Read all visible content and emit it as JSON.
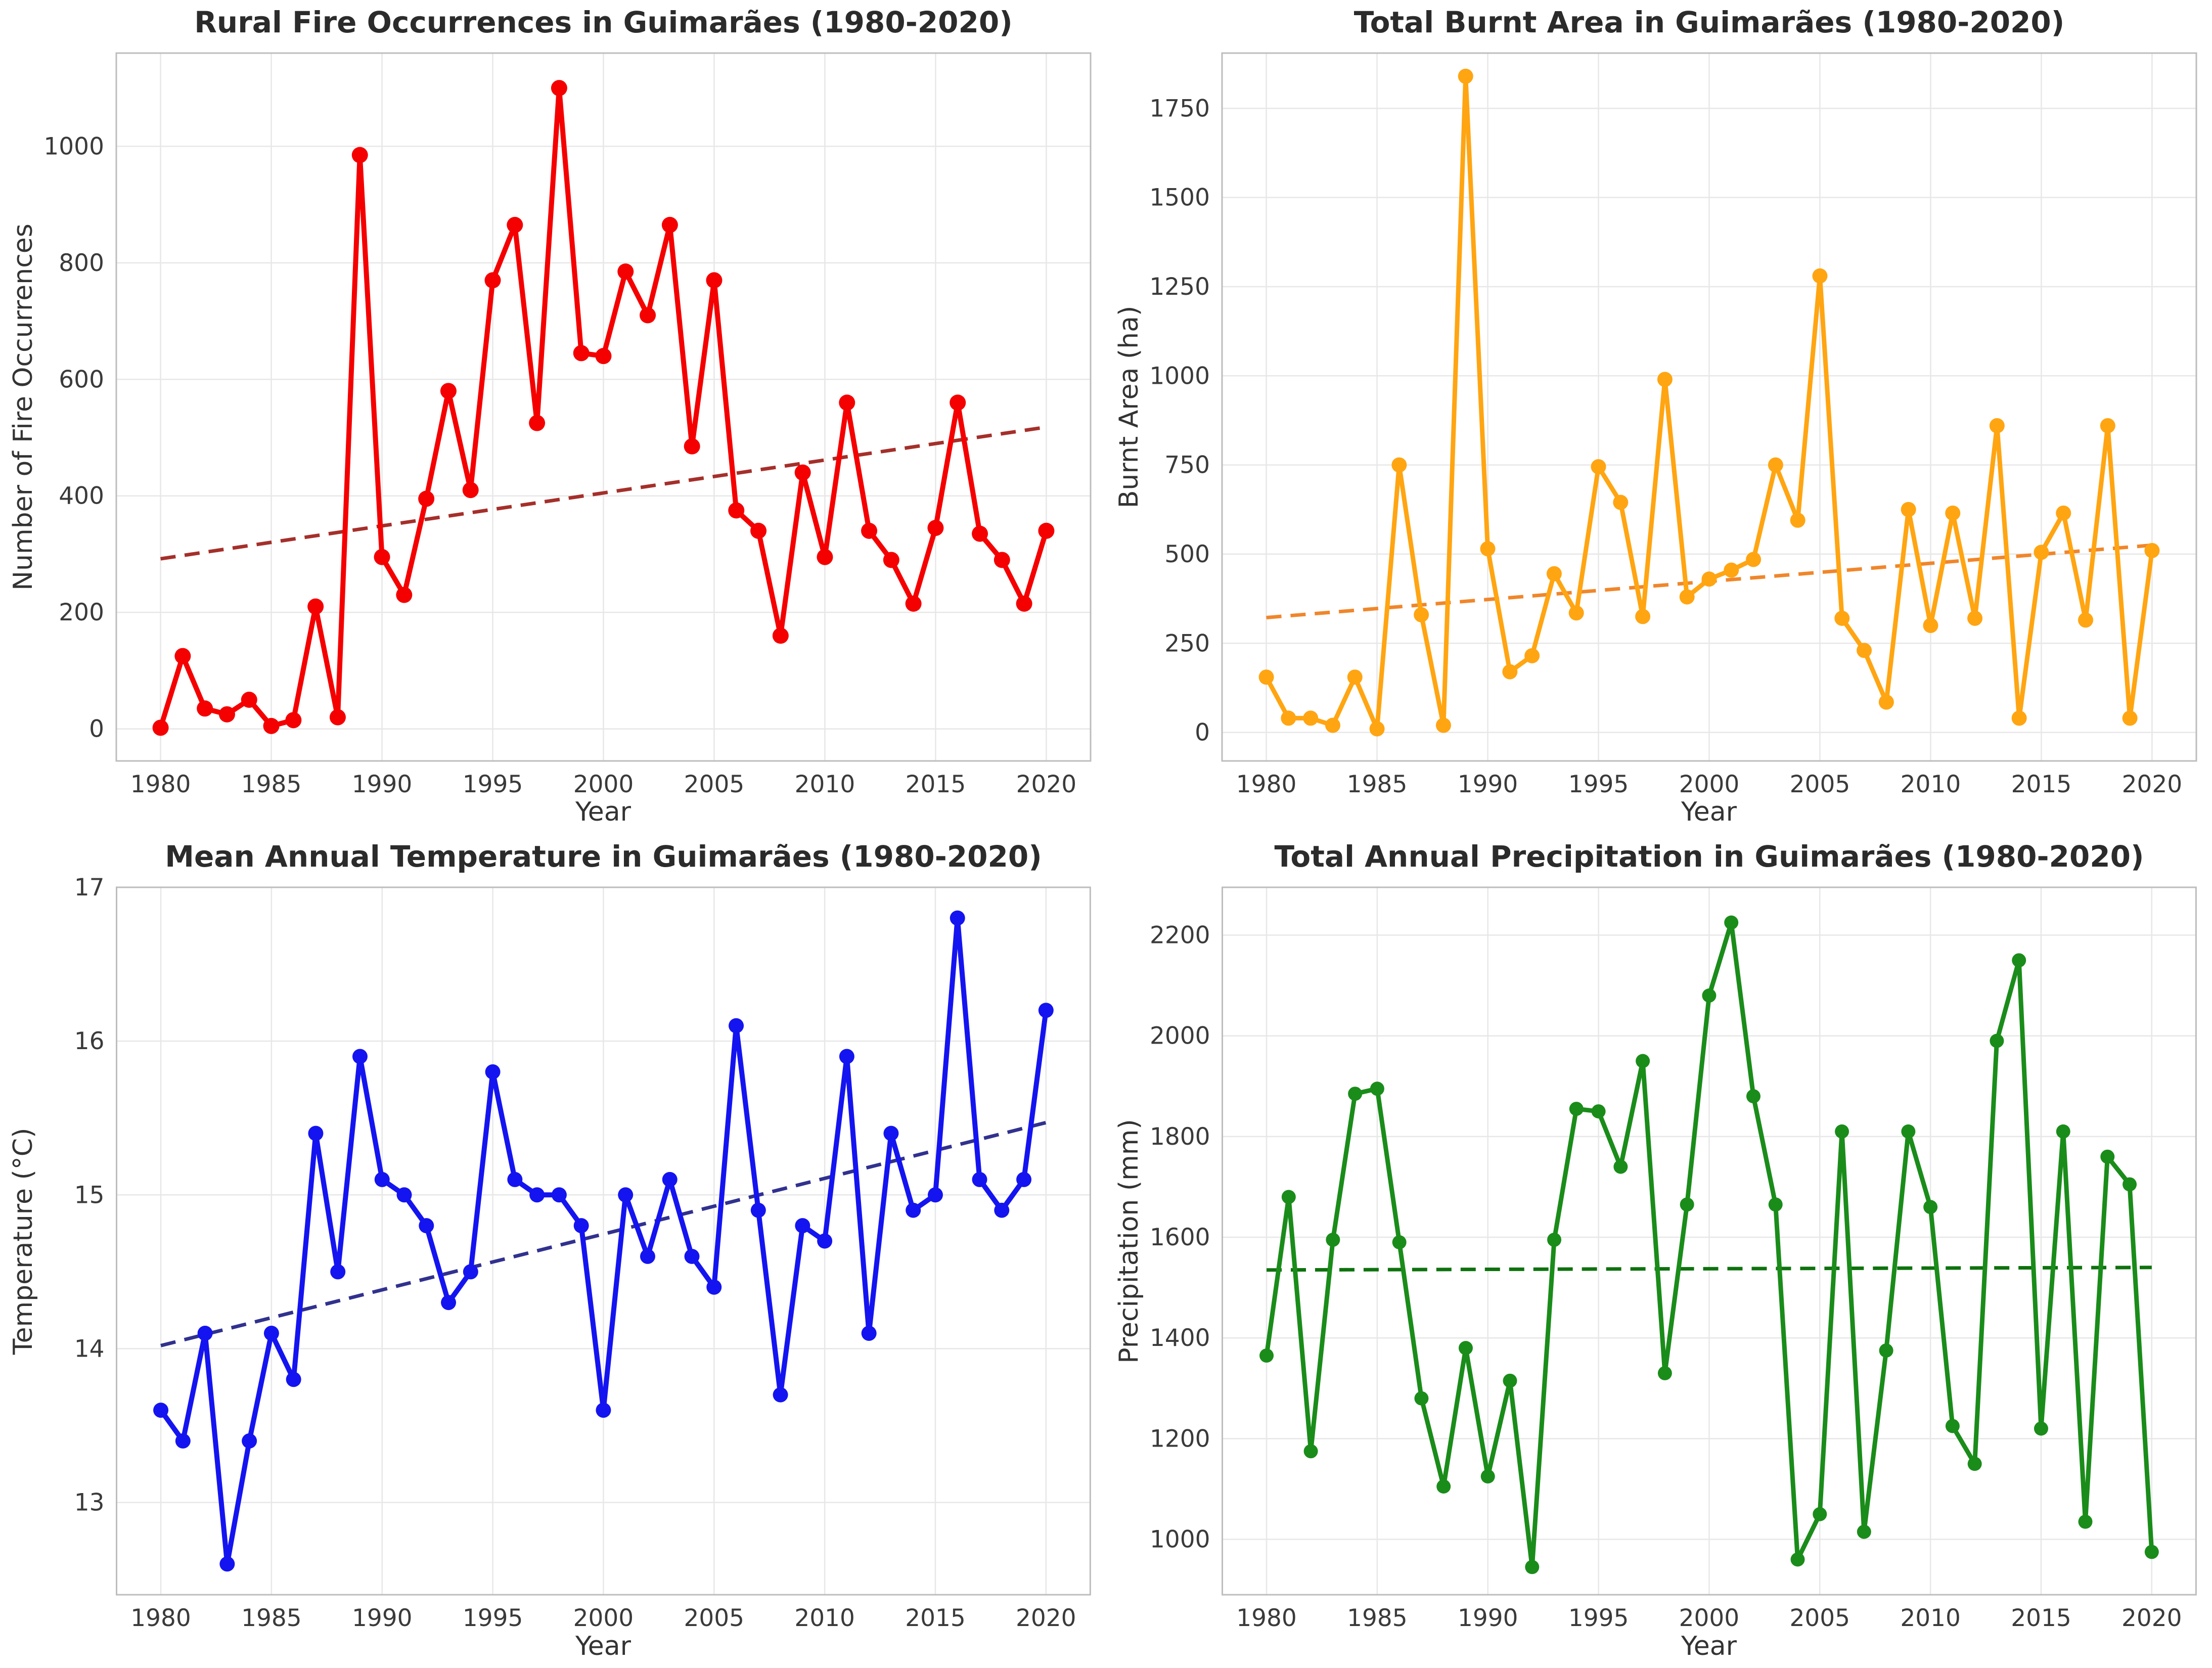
{
  "page": {
    "background": "#ffffff"
  },
  "chart_data": [
    {
      "type": "line",
      "title": "Rural Fire Occurrences in Guimarães (1980-2020)",
      "xlabel": "Year",
      "ylabel": "Number of Fire Occurrences",
      "years": [
        1980,
        1981,
        1982,
        1983,
        1984,
        1985,
        1986,
        1987,
        1988,
        1989,
        1990,
        1991,
        1992,
        1993,
        1994,
        1995,
        1996,
        1997,
        1998,
        1999,
        2000,
        2001,
        2002,
        2003,
        2004,
        2005,
        2006,
        2007,
        2008,
        2009,
        2010,
        2011,
        2012,
        2013,
        2014,
        2015,
        2016,
        2017,
        2018,
        2019,
        2020
      ],
      "values": [
        2,
        125,
        35,
        25,
        50,
        5,
        15,
        210,
        20,
        985,
        295,
        230,
        395,
        580,
        410,
        770,
        865,
        525,
        1100,
        645,
        640,
        785,
        710,
        865,
        485,
        770,
        375,
        340,
        160,
        440,
        295,
        560,
        340,
        290,
        215,
        345,
        560,
        335,
        290,
        215,
        340
      ],
      "xticks": [
        1980,
        1985,
        1990,
        1995,
        2000,
        2005,
        2010,
        2015,
        2020
      ],
      "yticks": [
        0,
        200,
        400,
        600,
        800,
        1000
      ],
      "xlim": [
        1978,
        2022
      ],
      "ylim": [
        -55,
        1160
      ],
      "grid": true,
      "legend": "none",
      "line_color": "#f50000",
      "marker": "circle",
      "marker_r": 16,
      "line_width": 10,
      "trend": {
        "style": "dashed",
        "color": "#a52f2a",
        "x": [
          1980,
          2020
        ],
        "y": [
          292,
          518
        ]
      }
    },
    {
      "type": "line",
      "title": "Total Burnt Area in Guimarães (1980-2020)",
      "xlabel": "Year",
      "ylabel": "Burnt Area (ha)",
      "years": [
        1980,
        1981,
        1982,
        1983,
        1984,
        1985,
        1986,
        1987,
        1988,
        1989,
        1990,
        1991,
        1992,
        1993,
        1994,
        1995,
        1996,
        1997,
        1998,
        1999,
        2000,
        2001,
        2002,
        2003,
        2004,
        2005,
        2006,
        2007,
        2008,
        2009,
        2010,
        2011,
        2012,
        2013,
        2014,
        2015,
        2016,
        2017,
        2018,
        2019,
        2020
      ],
      "values": [
        155,
        40,
        40,
        20,
        155,
        10,
        750,
        330,
        20,
        1840,
        515,
        170,
        215,
        445,
        335,
        745,
        645,
        325,
        990,
        380,
        430,
        455,
        485,
        750,
        595,
        1280,
        320,
        230,
        85,
        625,
        300,
        615,
        320,
        860,
        40,
        505,
        615,
        315,
        860,
        40,
        510
      ],
      "xticks": [
        1980,
        1985,
        1990,
        1995,
        2000,
        2005,
        2010,
        2015,
        2020
      ],
      "yticks": [
        0,
        250,
        500,
        750,
        1000,
        1250,
        1500,
        1750
      ],
      "xlim": [
        1978,
        2022
      ],
      "ylim": [
        -80,
        1905
      ],
      "grid": true,
      "legend": "none",
      "line_color": "#ffa512",
      "marker": "circle",
      "marker_r": 15,
      "line_width": 9,
      "trend": {
        "style": "dashed",
        "color": "#f0862a",
        "x": [
          1980,
          2020
        ],
        "y": [
          322,
          525
        ]
      }
    },
    {
      "type": "line",
      "title": "Mean Annual Temperature in Guimarães (1980-2020)",
      "xlabel": "Year",
      "ylabel": "Temperature (°C)",
      "years": [
        1980,
        1981,
        1982,
        1983,
        1984,
        1985,
        1986,
        1987,
        1988,
        1989,
        1990,
        1991,
        1992,
        1993,
        1994,
        1995,
        1996,
        1997,
        1998,
        1999,
        2000,
        2001,
        2002,
        2003,
        2004,
        2005,
        2006,
        2007,
        2008,
        2009,
        2010,
        2011,
        2012,
        2013,
        2014,
        2015,
        2016,
        2017,
        2018,
        2019,
        2020
      ],
      "values": [
        13.6,
        13.4,
        14.1,
        12.6,
        13.4,
        14.1,
        13.8,
        15.4,
        14.5,
        15.9,
        15.1,
        15.0,
        14.8,
        14.3,
        14.5,
        15.8,
        15.1,
        15.0,
        15.0,
        14.8,
        13.6,
        15.0,
        14.6,
        15.1,
        14.6,
        14.4,
        16.1,
        14.9,
        13.7,
        14.8,
        14.7,
        15.9,
        14.1,
        15.4,
        14.9,
        15.0,
        16.8,
        15.1,
        14.9,
        15.1,
        16.2
      ],
      "xticks": [
        1980,
        1985,
        1990,
        1995,
        2000,
        2005,
        2010,
        2015,
        2020
      ],
      "yticks": [
        13,
        14,
        15,
        16,
        17
      ],
      "xlim": [
        1978,
        2022
      ],
      "ylim": [
        12.4,
        17.0
      ],
      "grid": true,
      "legend": "none",
      "line_color": "#1414f0",
      "marker": "circle",
      "marker_r": 15,
      "line_width": 10,
      "trend": {
        "style": "dashed",
        "color": "#31318f",
        "x": [
          1980,
          2020
        ],
        "y": [
          14.02,
          15.47
        ]
      }
    },
    {
      "type": "line",
      "title": "Total Annual Precipitation in Guimarães (1980-2020)",
      "xlabel": "Year",
      "ylabel": "Precipitation (mm)",
      "years": [
        1980,
        1981,
        1982,
        1983,
        1984,
        1985,
        1986,
        1987,
        1988,
        1989,
        1990,
        1991,
        1992,
        1993,
        1994,
        1995,
        1996,
        1997,
        1998,
        1999,
        2000,
        2001,
        2002,
        2003,
        2004,
        2005,
        2006,
        2007,
        2008,
        2009,
        2010,
        2011,
        2012,
        2013,
        2014,
        2015,
        2016,
        2017,
        2018,
        2019,
        2020
      ],
      "values": [
        1365,
        1680,
        1175,
        1595,
        1885,
        1895,
        1590,
        1280,
        1105,
        1380,
        1125,
        1315,
        945,
        1595,
        1855,
        1850,
        1740,
        1950,
        1330,
        1665,
        2080,
        2225,
        1880,
        1665,
        960,
        1050,
        1810,
        1015,
        1375,
        1810,
        1660,
        1225,
        1150,
        1990,
        2150,
        1220,
        1810,
        1035,
        1760,
        1705,
        975
      ],
      "xticks": [
        1980,
        1985,
        1990,
        1995,
        2000,
        2005,
        2010,
        2015,
        2020
      ],
      "yticks": [
        1000,
        1200,
        1400,
        1600,
        1800,
        2000,
        2200
      ],
      "xlim": [
        1978,
        2022
      ],
      "ylim": [
        890,
        2295
      ],
      "grid": true,
      "legend": "none",
      "line_color": "#1a8c1a",
      "marker": "circle",
      "marker_r": 14,
      "line_width": 9,
      "trend": {
        "style": "dashed",
        "color": "#0e720e",
        "x": [
          1980,
          2020
        ],
        "y": [
          1535,
          1540
        ]
      }
    }
  ]
}
